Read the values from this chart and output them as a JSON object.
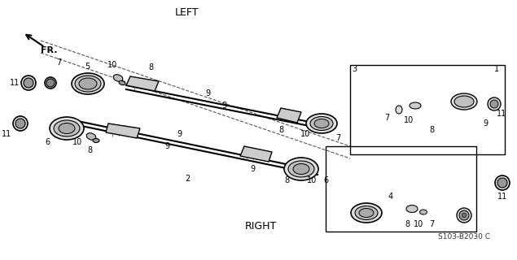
{
  "title": "LEFT",
  "subtitle": "RIGHT",
  "part_code": "S103-B2030 C",
  "background_color": "#ffffff",
  "line_color": "#000000",
  "text_color": "#000000",
  "figsize": [
    6.35,
    3.2
  ],
  "dpi": 100,
  "fr_label": "FR.",
  "left_label": "LEFT",
  "right_label": "RIGHT"
}
